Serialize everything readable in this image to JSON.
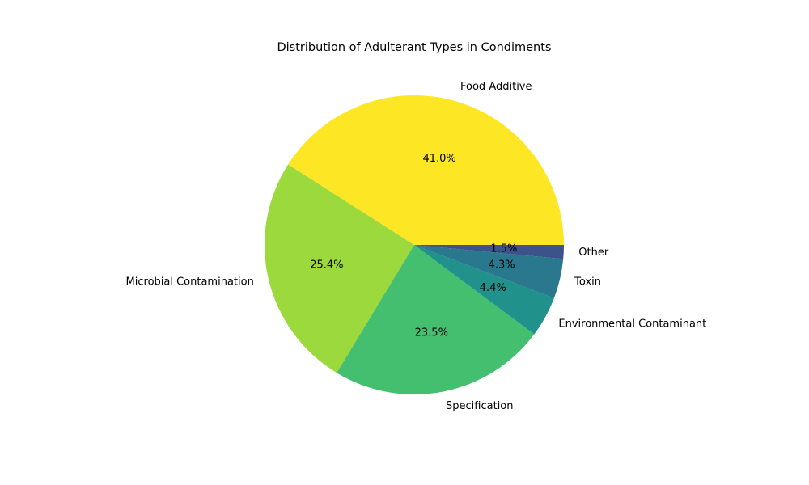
{
  "chart_data": {
    "type": "pie",
    "title": "Distribution of Adulterant Types in Condiments",
    "start_angle_deg": 0,
    "direction": "counterclockwise",
    "slices": [
      {
        "label": "Food Additive",
        "value": 41.0,
        "pct_label": "41.0%",
        "color": "#fde725"
      },
      {
        "label": "Microbial Contamination",
        "value": 25.4,
        "pct_label": "25.4%",
        "color": "#9bd93c"
      },
      {
        "label": "Specification",
        "value": 23.5,
        "pct_label": "23.5%",
        "color": "#44bf70"
      },
      {
        "label": "Environmental Contaminant",
        "value": 4.4,
        "pct_label": "4.4%",
        "color": "#21918c"
      },
      {
        "label": "Toxin",
        "value": 4.3,
        "pct_label": "4.3%",
        "color": "#2a788e"
      },
      {
        "label": "Other",
        "value": 1.5,
        "pct_label": "1.5%",
        "color": "#3b528b"
      }
    ]
  }
}
